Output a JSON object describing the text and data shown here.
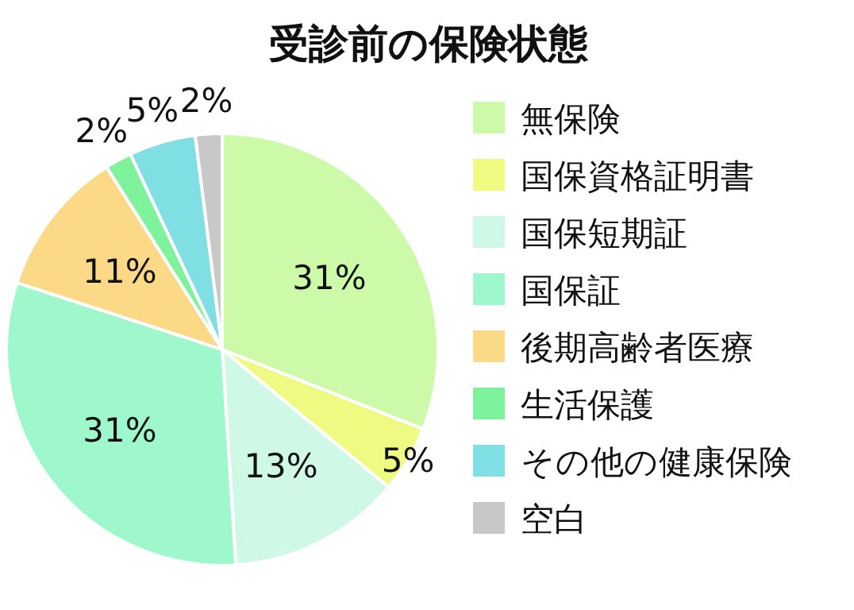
{
  "chart_data": {
    "type": "pie",
    "title": "受診前の保険状態",
    "categories": [
      "無保険",
      "国保資格証明書",
      "国保短期証",
      "国保証",
      "後期高齢者医療",
      "生活保護",
      "その他の健康保険",
      "空白"
    ],
    "values": [
      31,
      5,
      13,
      31,
      11,
      2,
      5,
      2
    ],
    "value_labels": [
      "31%",
      "5%",
      "13%",
      "31%",
      "11%",
      "2%",
      "5%",
      "2%"
    ],
    "colors": [
      "#ccfaa8",
      "#eefa82",
      "#cff9e6",
      "#9ef8cc",
      "#fcd987",
      "#7ff39c",
      "#7fdfe3",
      "#c8c8c8"
    ],
    "legend": "right"
  }
}
